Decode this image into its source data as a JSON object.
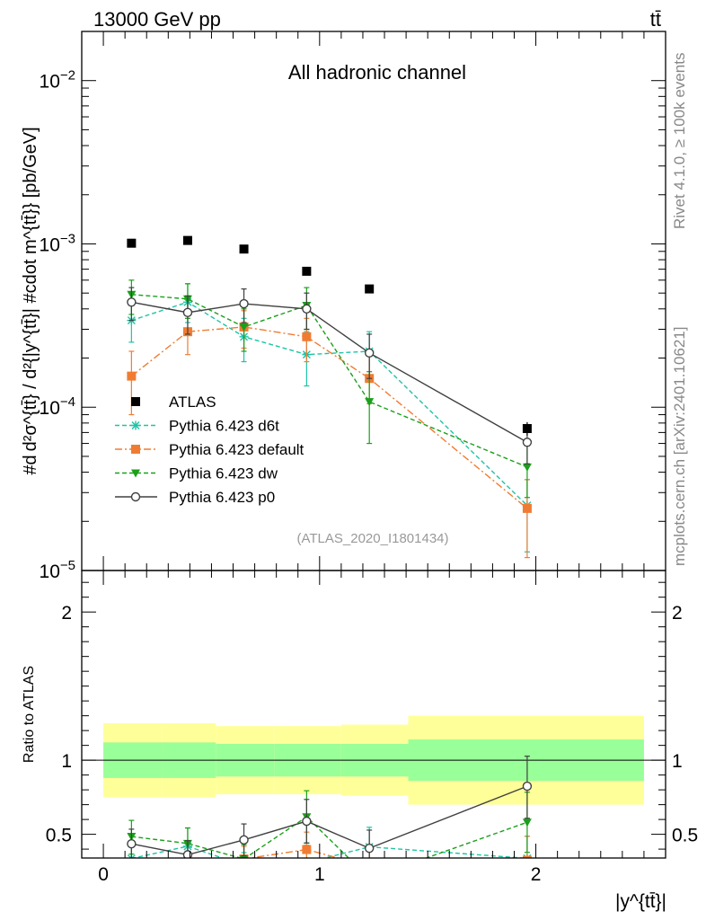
{
  "header": {
    "energy": "13000 GeV pp",
    "process": "tt̄"
  },
  "side_labels": {
    "rivet": "Rivet 4.1.0, ≥ 100k events",
    "source": "mcplots.cern.ch [arXiv:2401.10621]"
  },
  "chart_data": {
    "type": "line",
    "title": "All hadronic channel",
    "analysis_id": "(ATLAS_2020_I1801434)",
    "xlabel": "|y^{tt̄}|",
    "ylabel": "#d d²σ^{tt̄} / d²{|y^{tt̄}| #cdot m^{tt̄}} [pb/GeV]",
    "ratio_ylabel": "Ratio to ATLAS",
    "xlim": [
      -0.1,
      2.6
    ],
    "ylim": [
      1e-05,
      0.02
    ],
    "y_scale": "log",
    "ratio_ylim": [
      0.34,
      2.28
    ],
    "x_ticks": [
      {
        "v": 0,
        "label": "0"
      },
      {
        "v": 1,
        "label": "1"
      },
      {
        "v": 2,
        "label": "2"
      }
    ],
    "y_ticks": [
      {
        "v": 1e-05,
        "base": "10",
        "exp": "−5"
      },
      {
        "v": 0.0001,
        "base": "10",
        "exp": "−4"
      },
      {
        "v": 0.001,
        "base": "10",
        "exp": "−3"
      },
      {
        "v": 0.01,
        "base": "10",
        "exp": "−2"
      }
    ],
    "ratio_ticks": [
      {
        "v": 0.5,
        "label": "0.5"
      },
      {
        "v": 1,
        "label": "1"
      },
      {
        "v": 2,
        "label": "2"
      }
    ],
    "bins": [
      {
        "lo": 0.0,
        "hi": 0.27,
        "x": 0.13
      },
      {
        "lo": 0.27,
        "hi": 0.52,
        "x": 0.39
      },
      {
        "lo": 0.52,
        "hi": 0.79,
        "x": 0.65
      },
      {
        "lo": 0.79,
        "hi": 1.1,
        "x": 0.94
      },
      {
        "lo": 1.1,
        "hi": 1.41,
        "x": 1.23
      },
      {
        "lo": 1.41,
        "hi": 2.5,
        "x": 1.96
      }
    ],
    "data": {
      "name": "ATLAS",
      "color": "#000000",
      "y": [
        0.00101,
        0.00105,
        0.00093,
        0.00068,
        0.00053,
        7.4e-05
      ],
      "yerr": [
        0,
        0,
        0,
        0,
        0,
        7e-06
      ],
      "band_stat": [
        0.12,
        0.12,
        0.11,
        0.11,
        0.11,
        0.14
      ],
      "band_total": [
        0.25,
        0.25,
        0.23,
        0.23,
        0.24,
        0.3
      ]
    },
    "band_colors": {
      "total": "#ffff99",
      "stat": "#99ff99"
    },
    "series": [
      {
        "name": "Pythia 6.423 d6t",
        "color": "#1fc3a6",
        "marker": "star",
        "dash": "5,3",
        "y": [
          0.00034,
          0.00044,
          0.00027,
          0.00021,
          0.00022,
          2.5e-05
        ],
        "lo": [
          0.00025,
          0.00033,
          0.00019,
          0.000135,
          0.000145,
          1.3e-05
        ],
        "hi": [
          0.00045,
          0.00057,
          0.00035,
          0.00029,
          0.00029,
          3.6e-05
        ]
      },
      {
        "name": "Pythia 6.423 default",
        "color": "#f07c33",
        "marker": "square",
        "dash": "8,3,2,3",
        "y": [
          0.000155,
          0.00029,
          0.00031,
          0.00027,
          0.00015,
          2.4e-05
        ],
        "lo": [
          9e-05,
          0.00021,
          0.00023,
          0.00019,
          0.000105,
          1.2e-05
        ],
        "hi": [
          0.00022,
          0.00037,
          0.00039,
          0.00035,
          0.00021,
          3.6e-05
        ]
      },
      {
        "name": "Pythia 6.423 dw",
        "color": "#1aa01a",
        "marker": "tri",
        "dash": "5,3",
        "y": [
          0.00049,
          0.00046,
          0.00031,
          0.00042,
          0.000108,
          4.3e-05
        ],
        "lo": [
          0.00037,
          0.00035,
          0.00022,
          0.0003,
          6e-05,
          2.8e-05
        ],
        "hi": [
          0.0006,
          0.00057,
          0.0004,
          0.00054,
          0.000165,
          5.8e-05
        ]
      },
      {
        "name": "Pythia 6.423 p0",
        "color": "#404040",
        "marker": "circle",
        "dash": "",
        "y": [
          0.00044,
          0.00038,
          0.00043,
          0.0004,
          0.000215,
          6.1e-05
        ],
        "lo": [
          0.00034,
          0.00028,
          0.00033,
          0.0003,
          0.00015,
          4.5e-05
        ],
        "hi": [
          0.00054,
          0.00048,
          0.00053,
          0.0005,
          0.00028,
          7.6e-05
        ]
      }
    ]
  }
}
